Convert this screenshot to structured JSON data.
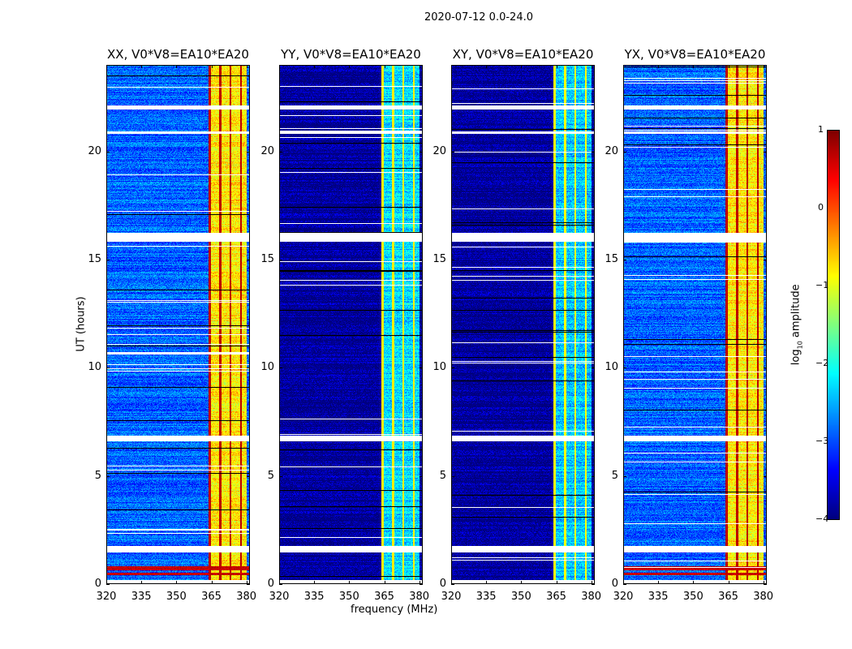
{
  "chart_data": {
    "type": "heatmap",
    "title": "2020-07-12 0.0-24.0",
    "xlabel": "frequency (MHz)",
    "ylabel": "UT (hours)",
    "xlim": [
      320,
      381.5
    ],
    "ylim": [
      0,
      24
    ],
    "xticks": [
      "320",
      "335",
      "350",
      "365",
      "380"
    ],
    "yticks": [
      "0",
      "5",
      "10",
      "15",
      "20"
    ],
    "colorbar": {
      "label_main": "log",
      "label_sub": "10",
      "label_tail": " amplitude",
      "range": [
        -4,
        1
      ],
      "ticks": [
        "1",
        "0",
        "−1",
        "−2",
        "−3",
        "−4"
      ],
      "colormap": "jet"
    },
    "band_mhz": [
      363.5,
      380
    ],
    "band_gaps_mhz": [
      364,
      368.5,
      373,
      377.5
    ],
    "flagged_hours": [
      [
        0.05,
        0.2
      ],
      [
        1.5,
        1.78
      ],
      [
        6.62,
        6.88
      ],
      [
        15.85,
        16.25
      ],
      [
        20.85,
        20.95
      ],
      [
        21.95,
        22.15
      ]
    ],
    "panels": [
      {
        "title": "XX, V0*V8=EA10*EA20",
        "background_log_amp": -2.9,
        "band_log_amp": -0.8,
        "rfi_hours": [
          0.5,
          0.7,
          0.8
        ]
      },
      {
        "title": "YY, V0*V8=EA10*EA20",
        "background_log_amp": -3.9,
        "band_log_amp": -2.3,
        "rfi_hours": []
      },
      {
        "title": "XY, V0*V8=EA10*EA20",
        "background_log_amp": -3.9,
        "band_log_amp": -2.4,
        "rfi_hours": []
      },
      {
        "title": "YX, V0*V8=EA10*EA20",
        "background_log_amp": -2.9,
        "band_log_amp": -0.8,
        "rfi_hours": [
          0.5,
          0.7,
          0.8
        ]
      }
    ]
  }
}
